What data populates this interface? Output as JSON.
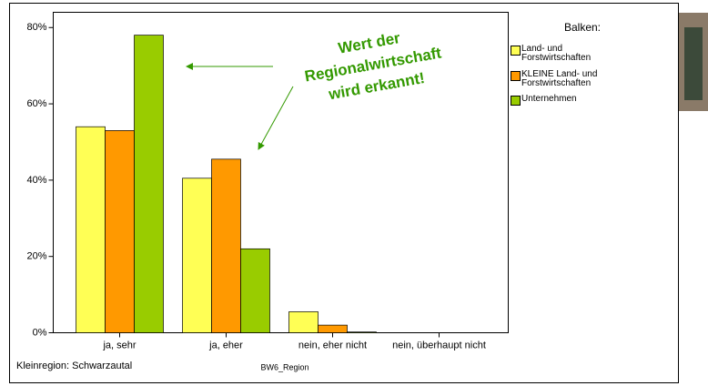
{
  "chart_data": {
    "type": "bar",
    "categories": [
      "ja, sehr",
      "ja, eher",
      "nein, eher nicht",
      "nein, überhaupt nicht"
    ],
    "series": [
      {
        "name": "Land- und Forstwirtschaften",
        "color": "#ffff55",
        "values": [
          54,
          40.5,
          5.5,
          0
        ]
      },
      {
        "name": "KLEINE Land- und Forstwirtschaften",
        "color": "#ff9900",
        "values": [
          53,
          45.5,
          2,
          0
        ]
      },
      {
        "name": "Unternehmen",
        "color": "#99cc00",
        "values": [
          78,
          22,
          0.2,
          0
        ]
      }
    ],
    "ylim": [
      0,
      84
    ],
    "yticks": [
      {
        "value": 0,
        "label": "0%"
      },
      {
        "value": 20,
        "label": "20%"
      },
      {
        "value": 40,
        "label": "40%"
      },
      {
        "value": 60,
        "label": "60%"
      },
      {
        "value": 80,
        "label": "80%"
      }
    ],
    "legend_title": "Balken:",
    "xlabel": "BW6_Region",
    "footnote": "Kleinregion: Schwarzautal",
    "annotation": [
      "Wert der",
      "Regionalwirtschaft",
      "wird erkannt!"
    ]
  }
}
